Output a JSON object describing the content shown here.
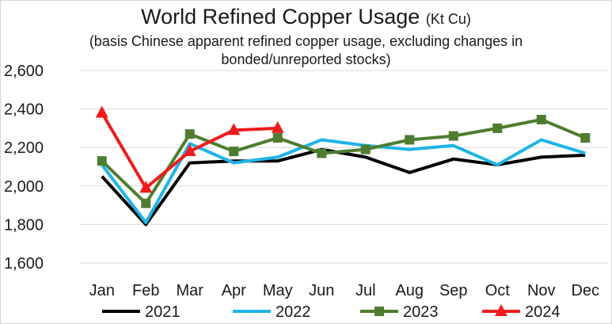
{
  "chart_data": {
    "type": "line",
    "title": "World Refined Copper Usage",
    "title_unit": "(Kt Cu)",
    "subtitle_lines": [
      "(basis Chinese apparent refined copper usage, excluding changes in",
      "bonded/unreported stocks)"
    ],
    "categories": [
      "Jan",
      "Feb",
      "Mar",
      "Apr",
      "May",
      "Jun",
      "Jul",
      "Aug",
      "Sep",
      "Oct",
      "Nov",
      "Dec"
    ],
    "ylim": [
      1600,
      2600
    ],
    "yticks": [
      1600,
      1800,
      2000,
      2200,
      2400,
      2600
    ],
    "ytick_labels": [
      "1,600",
      "1,800",
      "2,000",
      "2,200",
      "2,400",
      "2,600"
    ],
    "grid": true,
    "legend_position": "bottom",
    "series": [
      {
        "name": "2021",
        "color": "#000000",
        "marker": "none",
        "values": [
          2050,
          1800,
          2120,
          2130,
          2130,
          2190,
          2150,
          2070,
          2140,
          2110,
          2150,
          2160
        ]
      },
      {
        "name": "2022",
        "color": "#1fb4e8",
        "marker": "none",
        "values": [
          2110,
          1810,
          2220,
          2120,
          2150,
          2240,
          2210,
          2190,
          2210,
          2110,
          2240,
          2170
        ]
      },
      {
        "name": "2023",
        "color": "#4e7d2f",
        "marker": "square",
        "values": [
          2130,
          1910,
          2270,
          2180,
          2250,
          2170,
          2190,
          2240,
          2260,
          2300,
          2345,
          2250
        ]
      },
      {
        "name": "2024",
        "color": "#ee1c1c",
        "marker": "triangle",
        "values": [
          2380,
          1990,
          2180,
          2290,
          2300,
          null,
          null,
          null,
          null,
          null,
          null,
          null
        ]
      }
    ]
  }
}
